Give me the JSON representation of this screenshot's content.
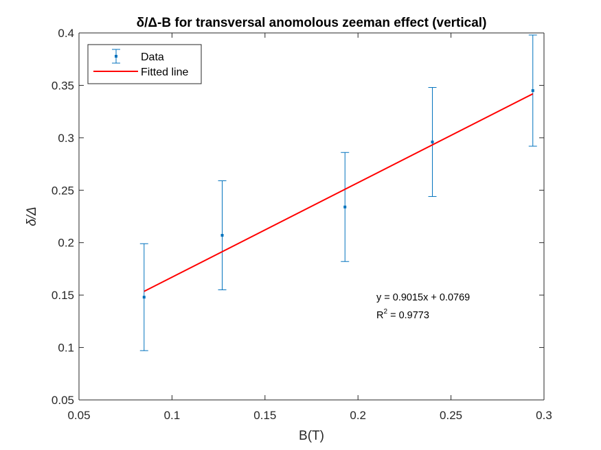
{
  "chart_data": {
    "type": "scatter",
    "title": "δ/Δ-B for transversal anomolous zeeman effect (vertical)",
    "xlabel": "B(T)",
    "ylabel": "δ/Δ",
    "xlim": [
      0.05,
      0.3
    ],
    "ylim": [
      0.05,
      0.4
    ],
    "xticks": [
      "0.05",
      "0.1",
      "0.15",
      "0.2",
      "0.25",
      "0.3"
    ],
    "yticks": [
      "0.05",
      "0.1",
      "0.15",
      "0.2",
      "0.25",
      "0.3",
      "0.35",
      "0.4"
    ],
    "grid": false,
    "legend_position": "top-left",
    "series": [
      {
        "name": "Data",
        "kind": "errorbar",
        "color": "#0072BD",
        "x": [
          0.085,
          0.127,
          0.193,
          0.24,
          0.294
        ],
        "y": [
          0.148,
          0.207,
          0.234,
          0.296,
          0.345
        ],
        "error": [
          0.051,
          0.052,
          0.052,
          0.052,
          0.053
        ]
      },
      {
        "name": "Fitted line",
        "kind": "line",
        "color": "#FF0000",
        "x": [
          0.085,
          0.294
        ],
        "y": [
          0.1535,
          0.3419
        ]
      }
    ],
    "annotations": {
      "equation": "y = 0.9015x + 0.0769",
      "r2_prefix": "R",
      "r2_exp": "2",
      "r2_suffix": " = 0.9773"
    }
  }
}
